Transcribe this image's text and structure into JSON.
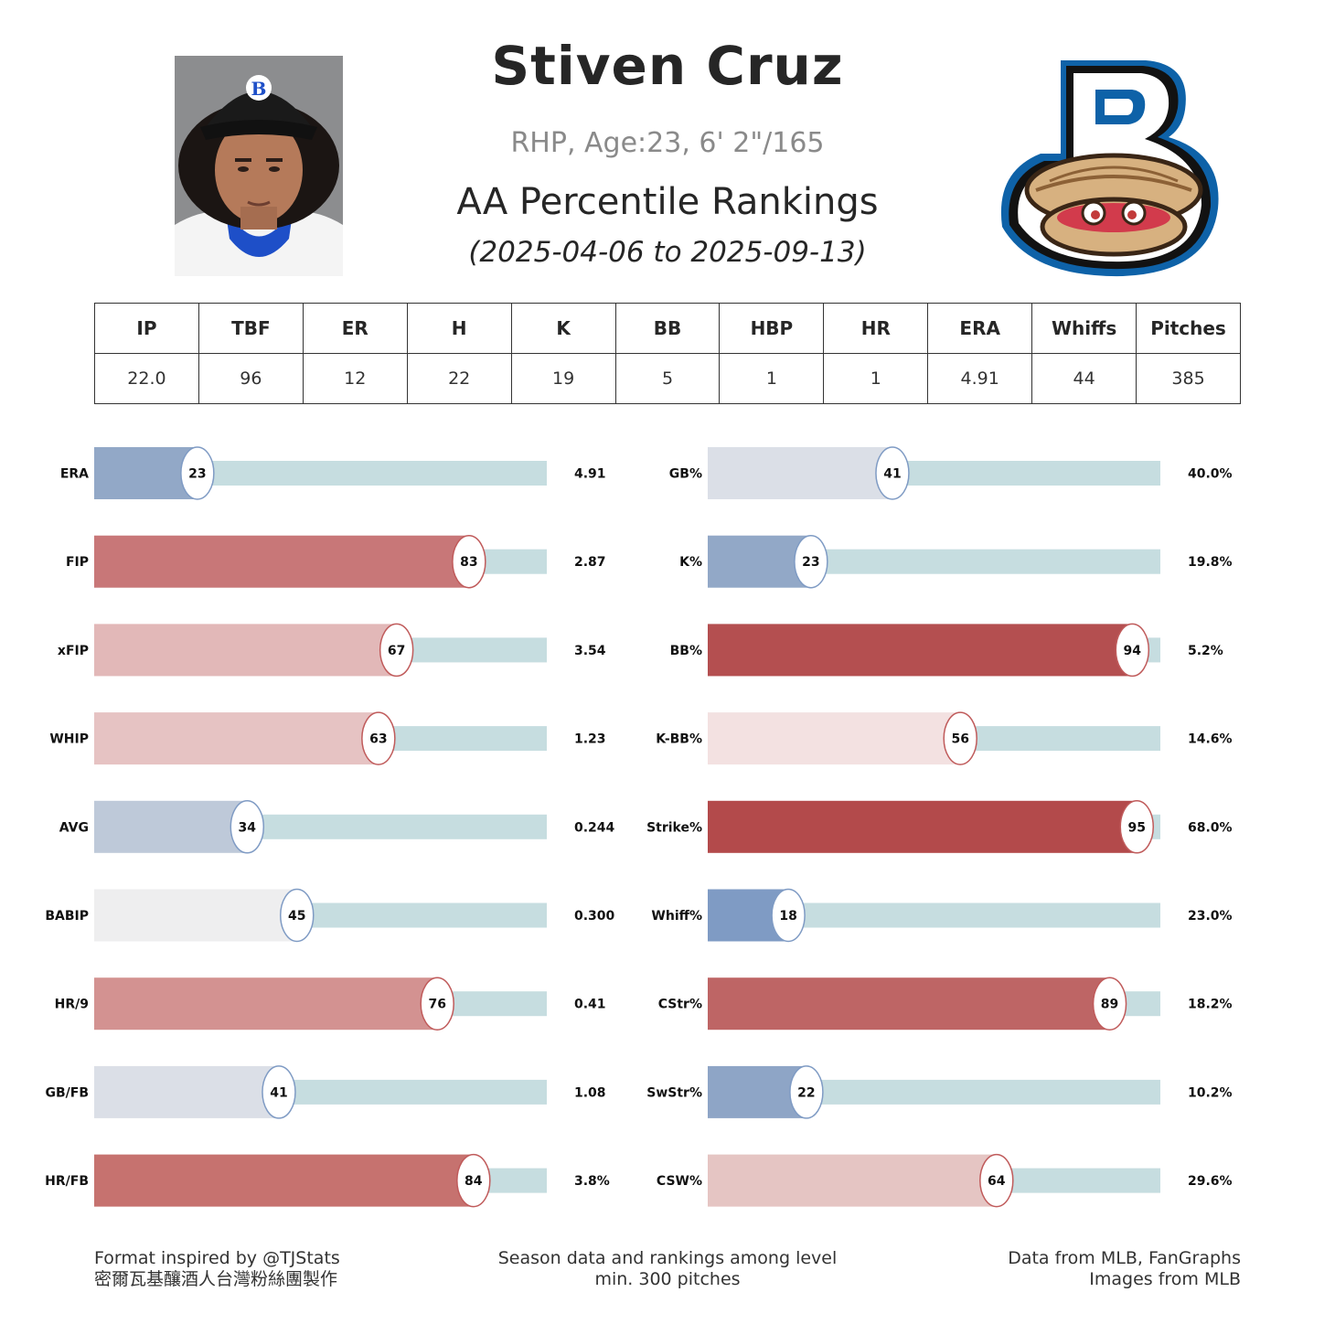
{
  "header": {
    "player_name": "Stiven Cruz",
    "bio": "RHP, Age:23, 6' 2\"/165",
    "ranking_title": "AA Percentile Rankings",
    "date_range": "(2025-04-06 to 2025-09-13)"
  },
  "stat_table": {
    "headers": [
      "IP",
      "TBF",
      "ER",
      "H",
      "K",
      "BB",
      "HBP",
      "HR",
      "ERA",
      "Whiffs",
      "Pitches"
    ],
    "values": [
      "22.0",
      "96",
      "12",
      "22",
      "19",
      "5",
      "1",
      "1",
      "4.91",
      "44",
      "385"
    ]
  },
  "chart_data": [
    {
      "type": "bar",
      "orientation": "horizontal",
      "x_range": [
        0,
        100
      ],
      "categories": [
        "ERA",
        "FIP",
        "xFIP",
        "WHIP",
        "AVG",
        "BABIP",
        "HR/9",
        "GB/FB",
        "HR/FB"
      ],
      "percentiles": [
        23,
        83,
        67,
        63,
        34,
        45,
        76,
        41,
        84
      ],
      "stat_values": [
        "4.91",
        "2.87",
        "3.54",
        "1.23",
        "0.244",
        "0.300",
        "0.41",
        "1.08",
        "3.8%"
      ],
      "colors": [
        "#92a8c7",
        "#c87778",
        "#e2b8b8",
        "#e6c3c3",
        "#bec9d9",
        "#eeeeef",
        "#d39291",
        "#dbdfe7",
        "#c6726f"
      ]
    },
    {
      "type": "bar",
      "orientation": "horizontal",
      "x_range": [
        0,
        100
      ],
      "categories": [
        "GB%",
        "K%",
        "BB%",
        "K-BB%",
        "Strike%",
        "Whiff%",
        "CStr%",
        "SwStr%",
        "CSW%"
      ],
      "percentiles": [
        41,
        23,
        94,
        56,
        95,
        18,
        89,
        22,
        64
      ],
      "stat_values": [
        "40.0%",
        "19.8%",
        "5.2%",
        "14.6%",
        "68.0%",
        "23.0%",
        "18.2%",
        "10.2%",
        "29.6%"
      ],
      "colors": [
        "#dbdfe7",
        "#92a8c7",
        "#b44f50",
        "#f3e1e1",
        "#b34a4b",
        "#7f9bc4",
        "#be6565",
        "#8ea5c6",
        "#e5c5c3"
      ]
    }
  ],
  "colors": {
    "track": "#c6dde0",
    "text": "#222222"
  },
  "footer": {
    "left_line1": "Format inspired by @TJStats",
    "left_line2": "密爾瓦基釀酒人台灣粉絲團製作",
    "mid_line1": "Season data and rankings among level",
    "mid_line2": "min. 300 pitches",
    "right_line1": "Data from MLB, FanGraphs",
    "right_line2": "Images from MLB"
  },
  "images": {
    "photo": "player-headshot",
    "logo": "team-logo-B-oyster"
  }
}
